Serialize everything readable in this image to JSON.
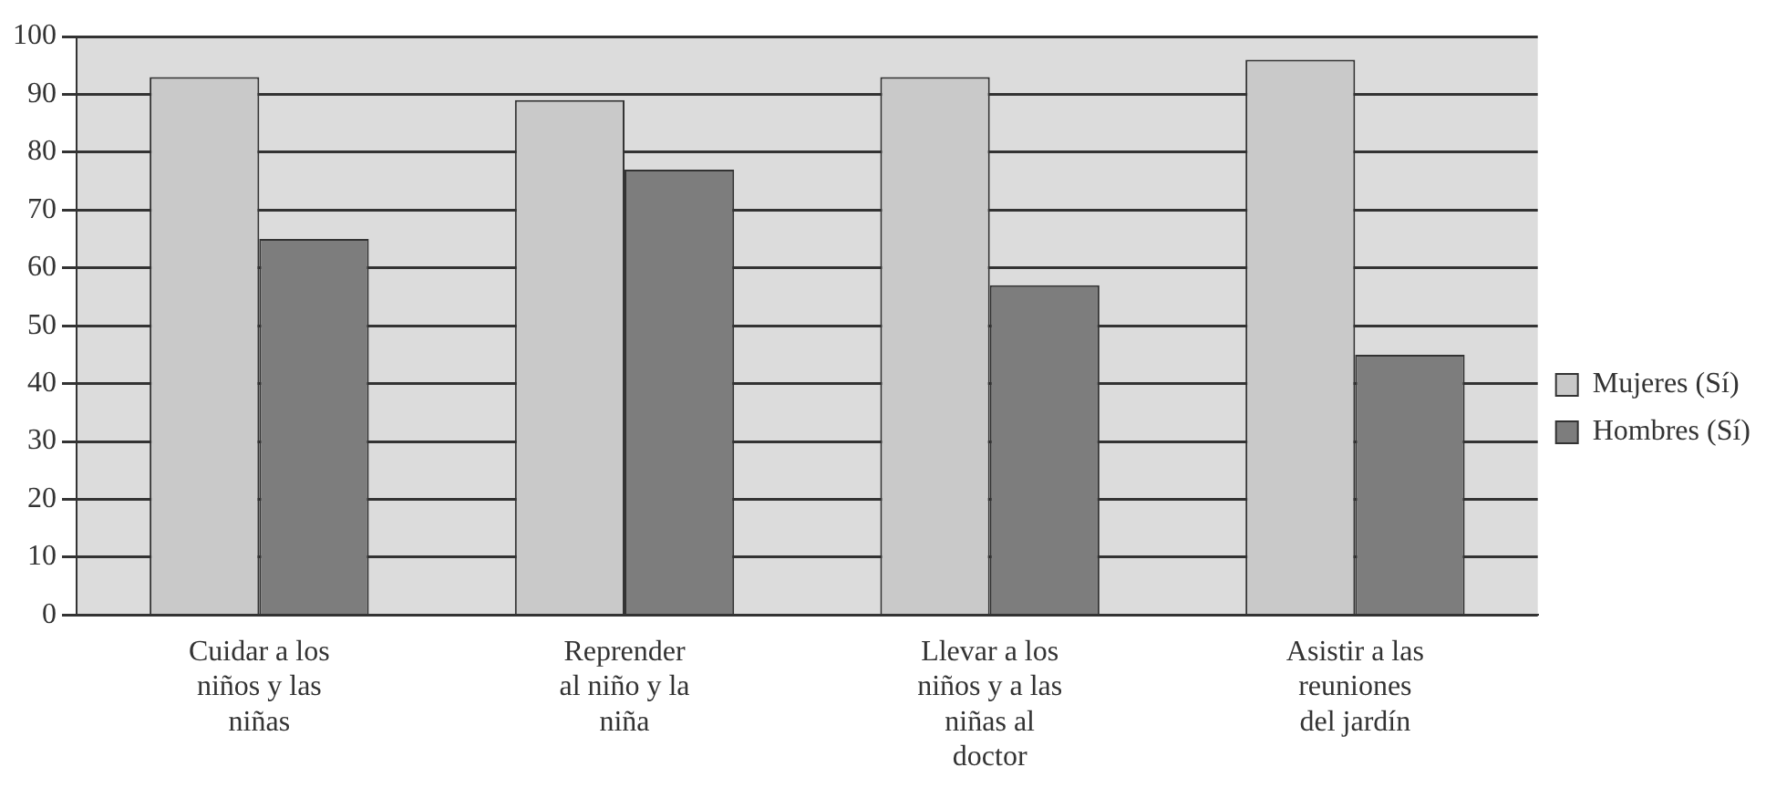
{
  "chart_data": {
    "type": "bar",
    "categories": [
      "Cuidar a los\nniños y las\nniñas",
      "Reprender\nal niño y la\nniña",
      "Llevar a los\nniños y a las\nniñas al\ndoctor",
      "Asistir a las\nreuniones\ndel jardín"
    ],
    "series": [
      {
        "name": "Mujeres (Sí)",
        "color": "#c9c9c9",
        "values": [
          93,
          89,
          93,
          96
        ]
      },
      {
        "name": "Hombres (Sí)",
        "color": "#7d7d7d",
        "values": [
          65,
          77,
          57,
          45
        ]
      }
    ],
    "ylim": [
      0,
      100
    ],
    "yticks": [
      0,
      10,
      20,
      30,
      40,
      50,
      60,
      70,
      80,
      90,
      100
    ],
    "grid": "y",
    "legend": "right"
  }
}
